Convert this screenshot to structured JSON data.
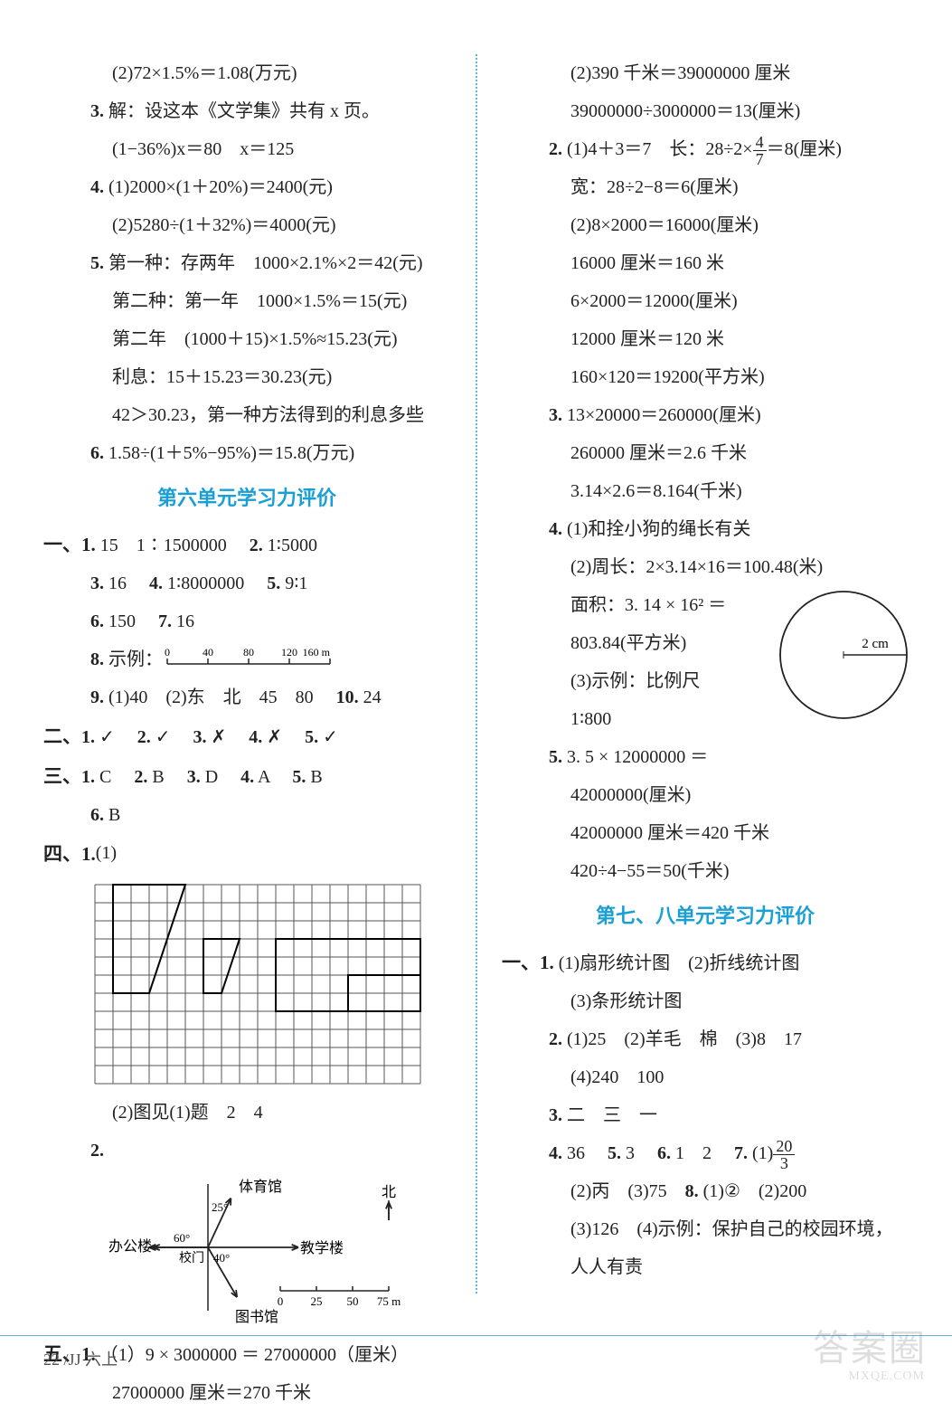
{
  "footer": {
    "text": "22 /JJ 六上"
  },
  "watermark": {
    "big": "答案圈",
    "small": "MXQE.COM"
  },
  "left": {
    "l01": "(2)72×1.5%＝1.08(万元)",
    "l02a": "3. ",
    "l02b": "解：设这本《文学集》共有 x 页。",
    "l03": "(1−36%)x＝80　x＝125",
    "l04a": "4. ",
    "l04b": "(1)2000×(1＋20%)＝2400(元)",
    "l05": "(2)5280÷(1＋32%)＝4000(元)",
    "l06a": "5. ",
    "l06b": "第一种：存两年　1000×2.1%×2＝42(元)",
    "l07": "第二种：第一年　1000×1.5%＝15(元)",
    "l08": "第二年　(1000＋15)×1.5%≈15.23(元)",
    "l09": "利息：15＋15.23＝30.23(元)",
    "l10": "42＞30.23，第一种方法得到的利息多些",
    "l11a": "6. ",
    "l11b": "1.58÷(1＋5%−95%)＝15.8(万元)",
    "sec6": "第六单元学习力评价",
    "g1": {
      "h": "一、1.",
      "a": "15　1∶1500000",
      "b": "2.",
      "c": "1∶5000"
    },
    "g3": {
      "a": "3.",
      "av": "16",
      "b": "4.",
      "bv": "1∶8000000",
      "c": "5.",
      "cv": "9∶1"
    },
    "g6": {
      "a": "6.",
      "av": "150",
      "b": "7.",
      "bv": "16"
    },
    "g8": {
      "a": "8.",
      "av": "示例："
    },
    "ruler": {
      "ticks": [
        "0",
        "40",
        "80",
        "120",
        "160 m"
      ]
    },
    "g9": {
      "a": "9.",
      "av": "(1)40　(2)东　北　45　80",
      "b": "10.",
      "bv": "24"
    },
    "g2h": "二、",
    "g2_1": "1.",
    "g2_1v": "✓",
    "g2_2": "2.",
    "g2_2v": "✓",
    "g2_3": "3.",
    "g2_3v": "✗",
    "g2_4": "4.",
    "g2_4v": "✗",
    "g2_5": "5.",
    "g2_5v": "✓",
    "g3h": "三、",
    "g3_1": "1.",
    "g3_1v": "C",
    "g3_2": "2.",
    "g3_2v": "B",
    "g3_3": "3.",
    "g3_3v": "D",
    "g3_4": "4.",
    "g3_4v": "A",
    "g3_5": "5.",
    "g3_5v": "B",
    "g3_6": "6.",
    "g3_6v": "B",
    "g4h": "四、1. ",
    "g4a": "(1)",
    "grid": {
      "cols": 18,
      "rows": 11,
      "cell": 20,
      "stroke": "#555",
      "sw": 1,
      "poly1": [
        [
          1,
          0
        ],
        [
          5,
          0
        ],
        [
          3,
          6
        ],
        [
          1,
          6
        ]
      ],
      "poly2": [
        [
          6,
          3
        ],
        [
          8,
          3
        ],
        [
          7,
          6
        ],
        [
          6,
          6
        ]
      ],
      "rect1": [
        10,
        3,
        18,
        7
      ],
      "rect2": [
        14,
        5,
        18,
        7
      ]
    },
    "g4b": "(2)图见(1)题　2　4",
    "g4_2": "2.",
    "map": {
      "center_label": "校门",
      "n1": "体育馆",
      "a1": "25°",
      "n2": "办公楼",
      "a2": "60°",
      "n3": "图书馆",
      "a3": "40°",
      "n4": "教学楼",
      "north": "北",
      "scale": [
        "0",
        "25",
        "50",
        "75 m"
      ]
    },
    "g5h": "五、1.",
    "g5a": "（1）9 × 3000000 ＝ 27000000（厘米）",
    "g5b": "27000000 厘米＝270 千米"
  },
  "right": {
    "r01": "(2)390 千米＝39000000 厘米",
    "r02": "39000000÷3000000＝13(厘米)",
    "r03a": "2. ",
    "r03b": "(1)4＋3＝7　长：28÷2×",
    "r03c": "＝8(厘米)",
    "frac1": {
      "t": "4",
      "b": "7"
    },
    "r04": "宽：28÷2−8＝6(厘米)",
    "r05": "(2)8×2000＝16000(厘米)",
    "r06": "16000 厘米＝160 米",
    "r07": "6×2000＝12000(厘米)",
    "r08": "12000 厘米＝120 米",
    "r09": "160×120＝19200(平方米)",
    "r10a": "3. ",
    "r10b": "13×20000＝260000(厘米)",
    "r11": "260000 厘米＝2.6 千米",
    "r12": "3.14×2.6＝8.164(千米)",
    "r13a": "4. ",
    "r13b": "(1)和拴小狗的绳长有关",
    "r14": "(2)周长：2×3.14×16＝100.48(米)",
    "r15": "面积：3. 14 × 16² ＝",
    "r16": "803.84(平方米)",
    "r17": "(3)示例：比例尺",
    "r18": "1∶800",
    "circle": {
      "r": 70,
      "stroke": "#222",
      "label": "2 cm"
    },
    "r19a": "5. ",
    "r19b": "3. 5 × 12000000 ＝",
    "r20": "42000000(厘米)",
    "r21": "42000000 厘米＝420 千米",
    "r22": "420÷4−55＝50(千米)",
    "sec78": "第七、八单元学习力评价",
    "s1h": "一、1.",
    "s1a": "(1)扇形统计图　(2)折线统计图",
    "s1b": "(3)条形统计图",
    "s2a": "2.",
    "s2b": "(1)25　(2)羊毛　棉　(3)8　17",
    "s2c": "(4)240　100",
    "s3a": "3.",
    "s3b": "二　三　一",
    "s4": {
      "a": "4.",
      "av": "36",
      "b": "5.",
      "bv": "3",
      "c": "6.",
      "cv": "1　2",
      "d": "7.",
      "dv": "(1)"
    },
    "frac2": {
      "t": "20",
      "b": "3"
    },
    "s5": "(2)丙　(3)75",
    "s5b": "8.",
    "s5c": "(1)②　(2)200",
    "s6": "(3)126　(4)示例：保护自己的校园环境，",
    "s7": "人人有责"
  }
}
